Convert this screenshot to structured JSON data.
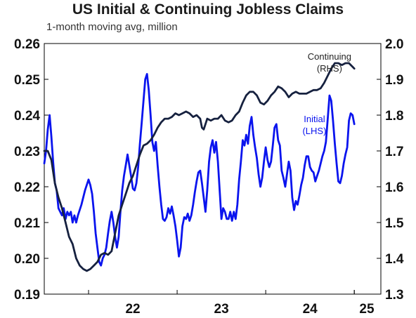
{
  "chart_data": {
    "type": "line",
    "title": "US Initial & Continuing Jobless Claims",
    "subtitle": "1-month moving avg, million",
    "x_range": [
      2021.5,
      2025.3
    ],
    "x_ticks": [
      {
        "value": 2022,
        "label": "22"
      },
      {
        "value": 2023,
        "label": "23"
      },
      {
        "value": 2024,
        "label": "24"
      },
      {
        "value": 2025,
        "label": "25"
      }
    ],
    "y_left": {
      "range": [
        0.19,
        0.26
      ],
      "ticks": [
        "0.19",
        "0.20",
        "0.21",
        "0.22",
        "0.23",
        "0.24",
        "0.25",
        "0.26"
      ]
    },
    "y_right": {
      "range": [
        1.3,
        2.0
      ],
      "ticks": [
        "1.3",
        "1.4",
        "1.5",
        "1.6",
        "1.7",
        "1.8",
        "1.9",
        "2.0"
      ]
    },
    "grid": false,
    "series": [
      {
        "name": "Initial (LHS)",
        "axis": "left",
        "color": "#0a14ee",
        "points": [
          [
            2021.5,
            0.2265
          ],
          [
            2021.52,
            0.23
          ],
          [
            2021.54,
            0.236
          ],
          [
            2021.56,
            0.24
          ],
          [
            2021.58,
            0.234
          ],
          [
            2021.6,
            0.227
          ],
          [
            2021.62,
            0.221
          ],
          [
            2021.64,
            0.219
          ],
          [
            2021.66,
            0.214
          ],
          [
            2021.68,
            0.213
          ],
          [
            2021.7,
            0.212
          ],
          [
            2021.72,
            0.214
          ],
          [
            2021.74,
            0.211
          ],
          [
            2021.76,
            0.213
          ],
          [
            2021.78,
            0.212
          ],
          [
            2021.8,
            0.213
          ],
          [
            2021.82,
            0.21
          ],
          [
            2021.84,
            0.212
          ],
          [
            2021.86,
            0.21
          ],
          [
            2021.88,
            0.212
          ],
          [
            2021.92,
            0.215
          ],
          [
            2021.96,
            0.219
          ],
          [
            2022.0,
            0.222
          ],
          [
            2022.02,
            0.2205
          ],
          [
            2022.04,
            0.218
          ],
          [
            2022.06,
            0.213
          ],
          [
            2022.08,
            0.207
          ],
          [
            2022.1,
            0.203
          ],
          [
            2022.12,
            0.199
          ],
          [
            2022.14,
            0.198
          ],
          [
            2022.16,
            0.2
          ],
          [
            2022.18,
            0.201
          ],
          [
            2022.2,
            0.203
          ],
          [
            2022.22,
            0.207
          ],
          [
            2022.24,
            0.2105
          ],
          [
            2022.26,
            0.213
          ],
          [
            2022.28,
            0.21
          ],
          [
            2022.3,
            0.206
          ],
          [
            2022.32,
            0.203
          ],
          [
            2022.34,
            0.206
          ],
          [
            2022.36,
            0.213
          ],
          [
            2022.38,
            0.219
          ],
          [
            2022.4,
            0.223
          ],
          [
            2022.42,
            0.226
          ],
          [
            2022.44,
            0.229
          ],
          [
            2022.46,
            0.226
          ],
          [
            2022.48,
            0.223
          ],
          [
            2022.5,
            0.2195
          ],
          [
            2022.52,
            0.219
          ],
          [
            2022.54,
            0.221
          ],
          [
            2022.56,
            0.2255
          ],
          [
            2022.58,
            0.232
          ],
          [
            2022.6,
            0.238
          ],
          [
            2022.62,
            0.244
          ],
          [
            2022.64,
            0.25
          ],
          [
            2022.66,
            0.2515
          ],
          [
            2022.68,
            0.247
          ],
          [
            2022.7,
            0.24
          ],
          [
            2022.72,
            0.2325
          ],
          [
            2022.74,
            0.23
          ],
          [
            2022.76,
            0.2325
          ],
          [
            2022.78,
            0.226
          ],
          [
            2022.8,
            0.22
          ],
          [
            2022.82,
            0.215
          ],
          [
            2022.84,
            0.211
          ],
          [
            2022.86,
            0.2105
          ],
          [
            2022.88,
            0.2115
          ],
          [
            2022.9,
            0.214
          ],
          [
            2022.92,
            0.2125
          ],
          [
            2022.94,
            0.2145
          ],
          [
            2022.96,
            0.212
          ],
          [
            2022.98,
            0.209
          ],
          [
            2023.0,
            0.205
          ],
          [
            2023.02,
            0.2005
          ],
          [
            2023.04,
            0.203
          ],
          [
            2023.06,
            0.209
          ],
          [
            2023.08,
            0.2115
          ],
          [
            2023.1,
            0.211
          ],
          [
            2023.12,
            0.2125
          ],
          [
            2023.14,
            0.2105
          ],
          [
            2023.16,
            0.212
          ],
          [
            2023.18,
            0.215
          ],
          [
            2023.2,
            0.2185
          ],
          [
            2023.22,
            0.2215
          ],
          [
            2023.24,
            0.224
          ],
          [
            2023.26,
            0.2245
          ],
          [
            2023.28,
            0.221
          ],
          [
            2023.3,
            0.217
          ],
          [
            2023.32,
            0.213
          ],
          [
            2023.34,
            0.219
          ],
          [
            2023.36,
            0.227
          ],
          [
            2023.38,
            0.231
          ],
          [
            2023.4,
            0.233
          ],
          [
            2023.42,
            0.2295
          ],
          [
            2023.44,
            0.2325
          ],
          [
            2023.46,
            0.227
          ],
          [
            2023.48,
            0.219
          ],
          [
            2023.5,
            0.211
          ],
          [
            2023.52,
            0.214
          ],
          [
            2023.54,
            0.213
          ],
          [
            2023.56,
            0.211
          ],
          [
            2023.58,
            0.211
          ],
          [
            2023.6,
            0.213
          ],
          [
            2023.62,
            0.2105
          ],
          [
            2023.64,
            0.213
          ],
          [
            2023.66,
            0.211
          ],
          [
            2023.68,
            0.215
          ],
          [
            2023.7,
            0.222
          ],
          [
            2023.72,
            0.227
          ],
          [
            2023.74,
            0.233
          ],
          [
            2023.76,
            0.2315
          ],
          [
            2023.78,
            0.2345
          ],
          [
            2023.8,
            0.232
          ],
          [
            2023.82,
            0.237
          ],
          [
            2023.84,
            0.2395
          ],
          [
            2023.86,
            0.2345
          ],
          [
            2023.88,
            0.231
          ],
          [
            2023.9,
            0.228
          ],
          [
            2023.92,
            0.2235
          ],
          [
            2023.94,
            0.22
          ],
          [
            2023.96,
            0.2225
          ],
          [
            2023.98,
            0.227
          ],
          [
            2024.0,
            0.231
          ],
          [
            2024.02,
            0.2275
          ],
          [
            2024.04,
            0.2255
          ],
          [
            2024.06,
            0.227
          ],
          [
            2024.08,
            0.2315
          ],
          [
            2024.1,
            0.2365
          ],
          [
            2024.12,
            0.2375
          ],
          [
            2024.14,
            0.233
          ],
          [
            2024.16,
            0.2315
          ],
          [
            2024.18,
            0.2245
          ],
          [
            2024.2,
            0.2225
          ],
          [
            2024.22,
            0.22
          ],
          [
            2024.24,
            0.2235
          ],
          [
            2024.26,
            0.227
          ],
          [
            2024.28,
            0.2245
          ],
          [
            2024.3,
            0.217
          ],
          [
            2024.32,
            0.2135
          ],
          [
            2024.34,
            0.216
          ],
          [
            2024.36,
            0.215
          ],
          [
            2024.38,
            0.2175
          ],
          [
            2024.4,
            0.2205
          ],
          [
            2024.42,
            0.2225
          ],
          [
            2024.44,
            0.226
          ],
          [
            2024.46,
            0.2285
          ],
          [
            2024.48,
            0.2285
          ],
          [
            2024.5,
            0.2255
          ],
          [
            2024.52,
            0.2245
          ],
          [
            2024.54,
            0.224
          ],
          [
            2024.56,
            0.2215
          ],
          [
            2024.58,
            0.223
          ],
          [
            2024.6,
            0.2245
          ],
          [
            2024.62,
            0.2265
          ],
          [
            2024.64,
            0.2285
          ],
          [
            2024.66,
            0.23
          ],
          [
            2024.68,
            0.2325
          ],
          [
            2024.7,
            0.239
          ],
          [
            2024.72,
            0.2455
          ],
          [
            2024.74,
            0.244
          ],
          [
            2024.76,
            0.2385
          ],
          [
            2024.78,
            0.232
          ],
          [
            2024.8,
            0.2265
          ],
          [
            2024.82,
            0.2215
          ],
          [
            2024.84,
            0.221
          ],
          [
            2024.86,
            0.223
          ],
          [
            2024.88,
            0.2265
          ],
          [
            2024.9,
            0.229
          ],
          [
            2024.92,
            0.231
          ],
          [
            2024.94,
            0.2385
          ],
          [
            2024.96,
            0.2405
          ],
          [
            2024.98,
            0.24
          ],
          [
            2025.0,
            0.2375
          ]
        ]
      },
      {
        "name": "Continuing (RHS)",
        "axis": "right",
        "color": "#16213f",
        "points": [
          [
            2021.5,
            1.7
          ],
          [
            2021.54,
            1.7
          ],
          [
            2021.58,
            1.675
          ],
          [
            2021.62,
            1.61
          ],
          [
            2021.66,
            1.57
          ],
          [
            2021.7,
            1.54
          ],
          [
            2021.74,
            1.5
          ],
          [
            2021.78,
            1.46
          ],
          [
            2021.82,
            1.44
          ],
          [
            2021.86,
            1.4
          ],
          [
            2021.9,
            1.38
          ],
          [
            2021.94,
            1.37
          ],
          [
            2021.98,
            1.365
          ],
          [
            2022.02,
            1.37
          ],
          [
            2022.06,
            1.38
          ],
          [
            2022.1,
            1.39
          ],
          [
            2022.14,
            1.41
          ],
          [
            2022.18,
            1.415
          ],
          [
            2022.22,
            1.41
          ],
          [
            2022.26,
            1.42
          ],
          [
            2022.3,
            1.47
          ],
          [
            2022.34,
            1.52
          ],
          [
            2022.38,
            1.55
          ],
          [
            2022.42,
            1.58
          ],
          [
            2022.46,
            1.61
          ],
          [
            2022.5,
            1.63
          ],
          [
            2022.54,
            1.66
          ],
          [
            2022.58,
            1.69
          ],
          [
            2022.62,
            1.715
          ],
          [
            2022.66,
            1.72
          ],
          [
            2022.7,
            1.73
          ],
          [
            2022.74,
            1.745
          ],
          [
            2022.78,
            1.765
          ],
          [
            2022.82,
            1.78
          ],
          [
            2022.86,
            1.79
          ],
          [
            2022.9,
            1.79
          ],
          [
            2022.94,
            1.795
          ],
          [
            2022.98,
            1.805
          ],
          [
            2023.02,
            1.8
          ],
          [
            2023.06,
            1.805
          ],
          [
            2023.1,
            1.81
          ],
          [
            2023.14,
            1.805
          ],
          [
            2023.18,
            1.795
          ],
          [
            2023.22,
            1.8
          ],
          [
            2023.26,
            1.79
          ],
          [
            2023.28,
            1.765
          ],
          [
            2023.3,
            1.76
          ],
          [
            2023.32,
            1.775
          ],
          [
            2023.34,
            1.79
          ],
          [
            2023.38,
            1.785
          ],
          [
            2023.42,
            1.79
          ],
          [
            2023.46,
            1.79
          ],
          [
            2023.5,
            1.8
          ],
          [
            2023.54,
            1.785
          ],
          [
            2023.58,
            1.78
          ],
          [
            2023.62,
            1.785
          ],
          [
            2023.66,
            1.8
          ],
          [
            2023.7,
            1.81
          ],
          [
            2023.74,
            1.835
          ],
          [
            2023.78,
            1.855
          ],
          [
            2023.82,
            1.865
          ],
          [
            2023.86,
            1.865
          ],
          [
            2023.9,
            1.855
          ],
          [
            2023.94,
            1.835
          ],
          [
            2023.98,
            1.83
          ],
          [
            2024.02,
            1.84
          ],
          [
            2024.06,
            1.855
          ],
          [
            2024.1,
            1.865
          ],
          [
            2024.14,
            1.88
          ],
          [
            2024.18,
            1.875
          ],
          [
            2024.22,
            1.865
          ],
          [
            2024.26,
            1.85
          ],
          [
            2024.3,
            1.86
          ],
          [
            2024.34,
            1.865
          ],
          [
            2024.38,
            1.86
          ],
          [
            2024.42,
            1.86
          ],
          [
            2024.46,
            1.86
          ],
          [
            2024.5,
            1.865
          ],
          [
            2024.54,
            1.87
          ],
          [
            2024.58,
            1.87
          ],
          [
            2024.62,
            1.875
          ],
          [
            2024.66,
            1.89
          ],
          [
            2024.7,
            1.91
          ],
          [
            2024.74,
            1.93
          ],
          [
            2024.78,
            1.945
          ],
          [
            2024.82,
            1.945
          ],
          [
            2024.86,
            1.94
          ],
          [
            2024.9,
            1.945
          ],
          [
            2024.94,
            1.945
          ],
          [
            2024.98,
            1.935
          ],
          [
            2025.0,
            1.93
          ]
        ]
      }
    ],
    "annotations": [
      {
        "lines": [
          "Continuing",
          "(RHS)"
        ],
        "series": "Continuing (RHS)"
      },
      {
        "lines": [
          "Initial",
          "(LHS)"
        ],
        "series": "Initial (LHS)"
      }
    ]
  }
}
